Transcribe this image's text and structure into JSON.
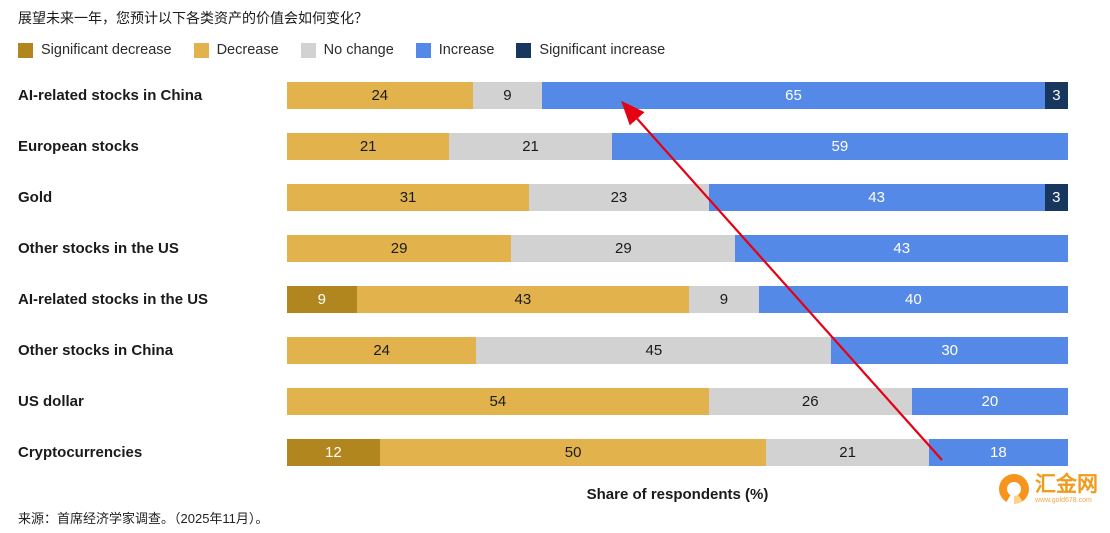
{
  "title": "展望未来一年，您预计以下各类资产的价值会如何变化？",
  "legend": [
    {
      "label": "Significant decrease",
      "color": "#b1861e",
      "text_color": "#ffffff"
    },
    {
      "label": "Decrease",
      "color": "#e2b34d",
      "text_color": "#1a1a1a"
    },
    {
      "label": "No change",
      "color": "#d2d2d2",
      "text_color": "#1a1a1a"
    },
    {
      "label": "Increase",
      "color": "#5589e8",
      "text_color": "#ffffff"
    },
    {
      "label": "Significant increase",
      "color": "#17375e",
      "text_color": "#ffffff"
    }
  ],
  "chart_data": {
    "type": "bar",
    "orientation": "horizontal",
    "stacked": true,
    "categories": [
      "AI-related stocks in China",
      "European stocks",
      "Gold",
      "Other stocks in the US",
      "AI-related stocks in the US",
      "Other stocks in China",
      "US dollar",
      "Cryptocurrencies"
    ],
    "series": [
      {
        "name": "Significant decrease",
        "values": [
          0,
          0,
          0,
          0,
          9,
          0,
          0,
          12
        ]
      },
      {
        "name": "Decrease",
        "values": [
          24,
          21,
          31,
          29,
          43,
          24,
          54,
          50
        ]
      },
      {
        "name": "No change",
        "values": [
          9,
          21,
          23,
          29,
          9,
          45,
          26,
          21
        ]
      },
      {
        "name": "Increase",
        "values": [
          65,
          59,
          43,
          43,
          40,
          30,
          20,
          18
        ]
      },
      {
        "name": "Significant increase",
        "values": [
          3,
          0,
          3,
          0,
          0,
          0,
          0,
          0
        ]
      }
    ],
    "xlabel": "Share of respondents (%)",
    "xlim": [
      0,
      100
    ],
    "annotation": {
      "type": "arrow",
      "color": "#e60012"
    }
  },
  "source": "来源：首席经济学家调查。（2025年11月）。",
  "watermark": {
    "text": "汇金网",
    "url": "www.gold678.com"
  }
}
